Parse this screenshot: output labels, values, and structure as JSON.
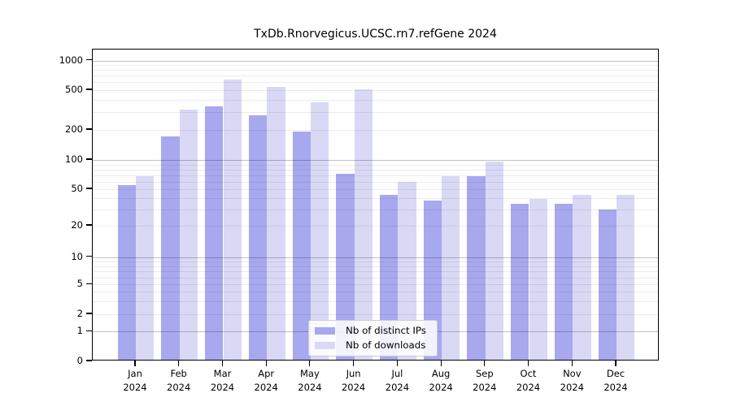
{
  "title": "TxDb.Rnorvegicus.UCSC.rn7.refGene 2024",
  "colors": {
    "distinct_ips": "#a8a8ee",
    "downloads": "#d9d9f6",
    "plot_border": "#000000",
    "major_grid": "#c6c6c6",
    "minor_grid": "#ebebeb",
    "legend_border": "#cccccc"
  },
  "chart_data": {
    "type": "bar",
    "title": "TxDb.Rnorvegicus.UCSC.rn7.refGene 2024",
    "categories": [
      "Jan 2024",
      "Feb 2024",
      "Mar 2024",
      "Apr 2024",
      "May 2024",
      "Jun 2024",
      "Jul 2024",
      "Aug 2024",
      "Sep 2024",
      "Oct 2024",
      "Nov 2024",
      "Dec 2024"
    ],
    "series": [
      {
        "name": "Nb of distinct IPs",
        "color": "#a8a8ee",
        "values": [
          53,
          166,
          331,
          270,
          186,
          69,
          42,
          36,
          66,
          33,
          33,
          29
        ]
      },
      {
        "name": "Nb of downloads",
        "color": "#d9d9f6",
        "values": [
          66,
          307,
          618,
          520,
          364,
          490,
          57,
          65,
          92,
          38,
          42,
          42
        ]
      }
    ],
    "xlabel": "",
    "ylabel": "",
    "y_ticks": [
      0,
      1,
      2,
      5,
      10,
      20,
      50,
      100,
      200,
      500,
      1000
    ],
    "ylim": [
      0,
      1000
    ],
    "yscale": "log-like with zero baseline",
    "grid": true,
    "legend_position": "bottom-center-inside"
  }
}
